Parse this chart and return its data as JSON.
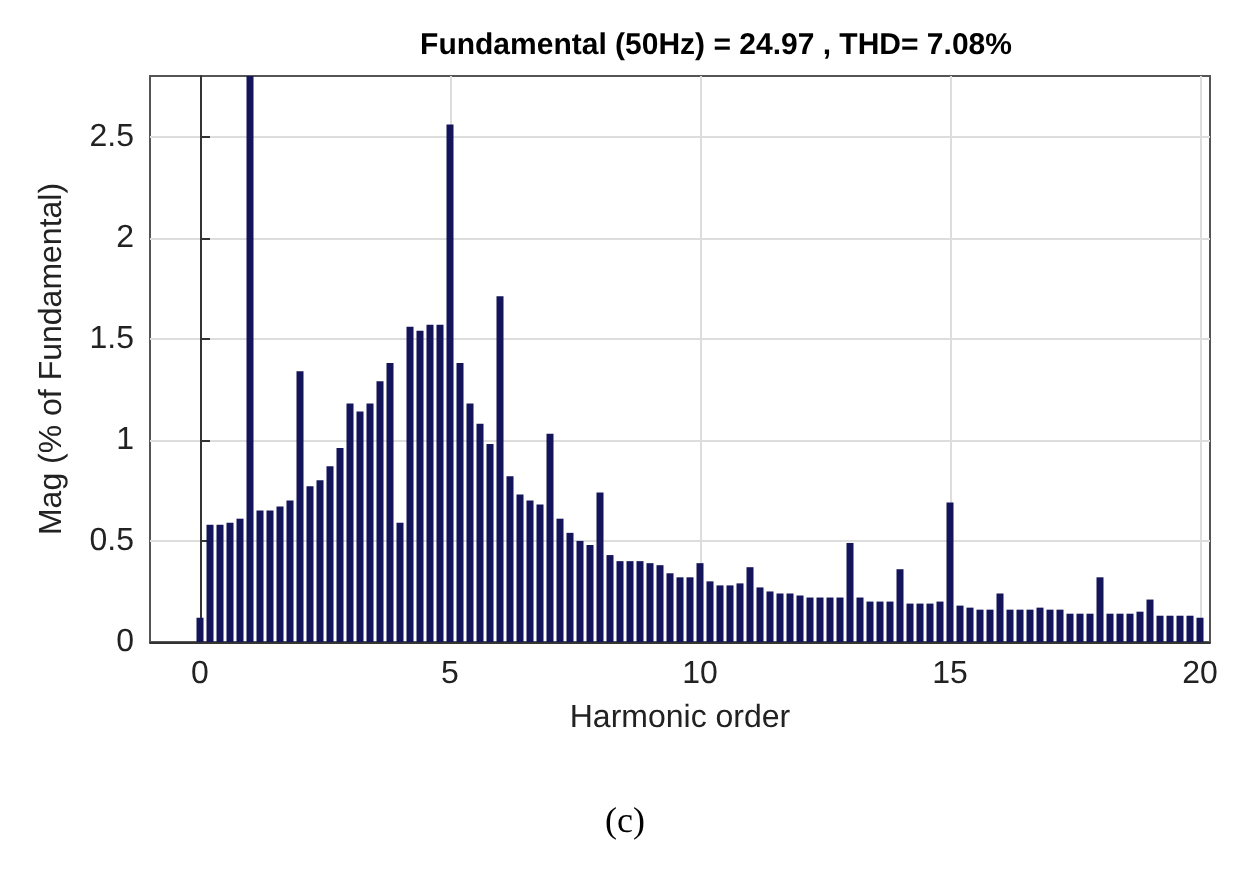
{
  "chart_data": {
    "type": "bar",
    "title": "Fundamental (50Hz) = 24.97 , THD= 7.08%",
    "xlabel": "Harmonic order",
    "ylabel": "Mag (% of Fundamental)",
    "annotations": [
      "(c)"
    ],
    "x": [
      0,
      0.2,
      0.4,
      0.6,
      0.8,
      1,
      1.2,
      1.4,
      1.6,
      1.8,
      2,
      2.2,
      2.4,
      2.6,
      2.8,
      3,
      3.2,
      3.4,
      3.6,
      3.8,
      4,
      4.2,
      4.4,
      4.6,
      4.8,
      5,
      5.2,
      5.4,
      5.6,
      5.8,
      6,
      6.2,
      6.4,
      6.6,
      6.8,
      7,
      7.2,
      7.4,
      7.6,
      7.8,
      8,
      8.2,
      8.4,
      8.6,
      8.8,
      9,
      9.2,
      9.4,
      9.6,
      9.8,
      10,
      10.2,
      10.4,
      10.6,
      10.8,
      11,
      11.2,
      11.4,
      11.6,
      11.8,
      12,
      12.2,
      12.4,
      12.6,
      12.8,
      13,
      13.2,
      13.4,
      13.6,
      13.8,
      14,
      14.2,
      14.4,
      14.6,
      14.8,
      15,
      15.2,
      15.4,
      15.6,
      15.8,
      16,
      16.2,
      16.4,
      16.6,
      16.8,
      17,
      17.2,
      17.4,
      17.6,
      17.8,
      18,
      18.2,
      18.4,
      18.6,
      18.8,
      19,
      19.2,
      19.4,
      19.6,
      19.8,
      20
    ],
    "values": [
      0.12,
      0.58,
      0.58,
      0.59,
      0.61,
      2.8,
      0.65,
      0.65,
      0.67,
      0.7,
      1.34,
      0.77,
      0.8,
      0.87,
      0.96,
      1.18,
      1.14,
      1.18,
      1.29,
      1.38,
      0.59,
      1.56,
      1.54,
      1.57,
      1.57,
      2.56,
      1.38,
      1.18,
      1.08,
      0.98,
      1.71,
      0.82,
      0.73,
      0.7,
      0.68,
      1.03,
      0.61,
      0.54,
      0.5,
      0.48,
      0.74,
      0.43,
      0.4,
      0.4,
      0.4,
      0.39,
      0.38,
      0.34,
      0.32,
      0.32,
      0.39,
      0.3,
      0.28,
      0.28,
      0.29,
      0.37,
      0.27,
      0.25,
      0.24,
      0.24,
      0.23,
      0.22,
      0.22,
      0.22,
      0.22,
      0.49,
      0.22,
      0.2,
      0.2,
      0.2,
      0.36,
      0.19,
      0.19,
      0.19,
      0.2,
      0.69,
      0.18,
      0.17,
      0.16,
      0.16,
      0.24,
      0.16,
      0.16,
      0.16,
      0.17,
      0.16,
      0.16,
      0.14,
      0.14,
      0.14,
      0.32,
      0.14,
      0.14,
      0.14,
      0.15,
      0.21,
      0.13,
      0.13,
      0.13,
      0.13,
      0.12
    ],
    "color": "#14145a",
    "xlim": [
      -1,
      20.2
    ],
    "xticks": [
      0,
      5,
      10,
      15,
      20
    ],
    "ylim": [
      0,
      2.8
    ],
    "yticks": [
      0,
      0.5,
      1,
      1.5,
      2,
      2.5
    ],
    "grid": true
  }
}
